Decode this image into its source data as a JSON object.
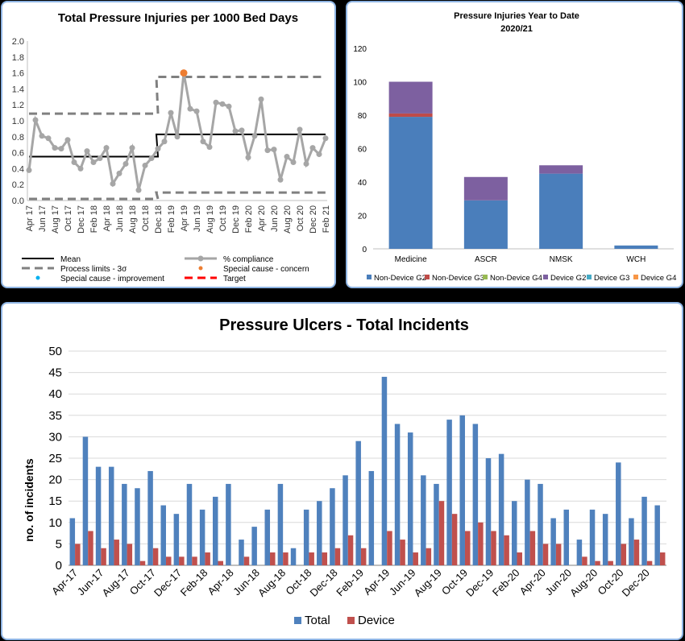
{
  "chart_data": [
    {
      "type": "line",
      "title": "Total Pressure Injuries per 1000 Bed Days",
      "ylim": [
        0,
        2.0
      ],
      "yticks": [
        "0.0",
        "0.2",
        "0.4",
        "0.6",
        "0.8",
        "1.0",
        "1.2",
        "1.4",
        "1.6",
        "1.8",
        "2.0"
      ],
      "x": [
        "Apr 17",
        "May 17",
        "Jun 17",
        "Jul 17",
        "Aug 17",
        "Sep 17",
        "Oct 17",
        "Nov 17",
        "Dec 17",
        "Jan 18",
        "Feb 18",
        "Mar 18",
        "Apr 18",
        "May 18",
        "Jun 18",
        "Jul 18",
        "Aug 18",
        "Sep 18",
        "Oct 18",
        "Nov 18",
        "Dec 18",
        "Jan 19",
        "Feb 19",
        "Mar 19",
        "Apr 19",
        "May 19",
        "Jun 19",
        "Jul 19",
        "Aug 19",
        "Sep 19",
        "Oct 19",
        "Nov 19",
        "Dec 19",
        "Jan 20",
        "Feb 20",
        "Mar 20",
        "Apr 20",
        "May 20",
        "Jun 20",
        "Jul 20",
        "Aug 20",
        "Sep 20",
        "Oct 20",
        "Nov 20",
        "Dec 20",
        "Jan 21",
        "Feb 21"
      ],
      "xtick_labels": [
        "Apr 17",
        "Jun 17",
        "Aug 17",
        "Oct 17",
        "Dec 17",
        "Feb 18",
        "Apr 18",
        "Jun 18",
        "Aug 18",
        "Oct 18",
        "Dec 18",
        "Feb 19",
        "Apr 19",
        "Jun 19",
        "Aug 19",
        "Oct 19",
        "Dec 19",
        "Feb 20",
        "Apr 20",
        "Jun 20",
        "Aug 20",
        "Oct 20",
        "Dec 20",
        "Feb 21"
      ],
      "series": [
        {
          "name": "% compliance",
          "color": "#a6a6a6",
          "values": [
            0.38,
            1.01,
            0.81,
            0.78,
            0.66,
            0.65,
            0.76,
            0.48,
            0.4,
            0.62,
            0.48,
            0.53,
            0.66,
            0.21,
            0.34,
            0.46,
            0.66,
            0.13,
            0.44,
            0.53,
            0.65,
            0.74,
            1.1,
            0.8,
            1.6,
            1.15,
            1.12,
            0.74,
            0.67,
            1.23,
            1.21,
            1.18,
            0.87,
            0.88,
            0.54,
            0.81,
            1.27,
            0.63,
            0.64,
            0.26,
            0.55,
            0.48,
            0.89,
            0.46,
            0.66,
            0.58,
            0.78
          ]
        },
        {
          "name": "Mean",
          "color": "#000000",
          "segments": [
            {
              "from": 0,
              "to": 20,
              "value": 0.55
            },
            {
              "from": 20,
              "to": 46,
              "value": 0.83
            }
          ]
        },
        {
          "name": "Process limits - 3σ",
          "color": "#808080",
          "upper": [
            {
              "from": 0,
              "to": 20,
              "value": 1.09
            },
            {
              "from": 20,
              "to": 46,
              "value": 1.55
            }
          ],
          "lower": [
            {
              "from": 0,
              "to": 20,
              "value": 0.02
            },
            {
              "from": 20,
              "to": 46,
              "value": 0.1
            }
          ]
        }
      ],
      "special_cause_concern": {
        "index": 24,
        "value": 1.6,
        "color": "#ed7d31"
      },
      "legend": [
        {
          "label": "Mean",
          "style": "line",
          "color": "#000000"
        },
        {
          "label": "% compliance",
          "style": "line-marker",
          "color": "#a6a6a6"
        },
        {
          "label": "Process limits - 3σ",
          "style": "dash",
          "color": "#808080"
        },
        {
          "label": "Special cause - concern",
          "style": "dot",
          "color": "#ed7d31"
        },
        {
          "label": "Special cause  - improvement",
          "style": "dot",
          "color": "#00b0f0"
        },
        {
          "label": "Target",
          "style": "dash",
          "color": "#ff0000"
        }
      ]
    },
    {
      "type": "bar",
      "stacked": true,
      "title": "Pressure Injuries Year to Date",
      "subtitle": "2020/21",
      "ylim": [
        0,
        120
      ],
      "yticks": [
        "0",
        "20",
        "40",
        "60",
        "80",
        "100",
        "120"
      ],
      "categories": [
        "Medicine",
        "ASCR",
        "NMSK",
        "WCH"
      ],
      "series": [
        {
          "name": "Non-Device G2",
          "color": "#4a7ebb",
          "values": [
            79,
            29,
            45,
            2
          ]
        },
        {
          "name": "Non-Device G3",
          "color": "#be4b48",
          "values": [
            2,
            0,
            0,
            0
          ]
        },
        {
          "name": "Non-Device G4",
          "color": "#98b954",
          "values": [
            0,
            0,
            0,
            0
          ]
        },
        {
          "name": "Device G2",
          "color": "#7d60a0",
          "values": [
            19,
            14,
            5,
            0
          ]
        },
        {
          "name": "Device G3",
          "color": "#46aac5",
          "values": [
            0,
            0,
            0,
            0
          ]
        },
        {
          "name": "Device G4",
          "color": "#f79646",
          "values": [
            0,
            0,
            0,
            0
          ]
        }
      ]
    },
    {
      "type": "bar",
      "title": "Pressure Ulcers - Total Incidents",
      "ylabel": "no. of incidents",
      "ylim": [
        0,
        50
      ],
      "yticks": [
        "0",
        "5",
        "10",
        "15",
        "20",
        "25",
        "30",
        "35",
        "40",
        "45",
        "50"
      ],
      "categories": [
        "Apr-17",
        "May-17",
        "Jun-17",
        "Jul-17",
        "Aug-17",
        "Sep-17",
        "Oct-17",
        "Nov-17",
        "Dec-17",
        "Jan-18",
        "Feb-18",
        "Mar-18",
        "Apr-18",
        "May-18",
        "Jun-18",
        "Jul-18",
        "Aug-18",
        "Sep-18",
        "Oct-18",
        "Nov-18",
        "Dec-18",
        "Jan-19",
        "Feb-19",
        "Mar-19",
        "Apr-19",
        "May-19",
        "Jun-19",
        "Jul-19",
        "Aug-19",
        "Sep-19",
        "Oct-19",
        "Nov-19",
        "Dec-19",
        "Jan-20",
        "Feb-20",
        "Mar-20",
        "Apr-20",
        "May-20",
        "Jun-20",
        "Jul-20",
        "Aug-20",
        "Sep-20",
        "Oct-20",
        "Nov-20",
        "Dec-20",
        "Jan-21"
      ],
      "xtick_labels": [
        "Apr-17",
        "Jun-17",
        "Aug-17",
        "Oct-17",
        "Dec-17",
        "Feb-18",
        "Apr-18",
        "Jun-18",
        "Aug-18",
        "Oct-18",
        "Dec-18",
        "Feb-19",
        "Apr-19",
        "Jun-19",
        "Aug-19",
        "Oct-19",
        "Dec-19",
        "Feb-20",
        "Apr-20",
        "Jun-20",
        "Aug-20",
        "Oct-20",
        "Dec-20"
      ],
      "series": [
        {
          "name": "Total",
          "color": "#4f81bd",
          "values": [
            11,
            30,
            23,
            23,
            19,
            18,
            22,
            14,
            12,
            19,
            13,
            16,
            19,
            6,
            9,
            13,
            19,
            4,
            13,
            15,
            18,
            21,
            29,
            22,
            44,
            33,
            31,
            21,
            19,
            34,
            35,
            33,
            25,
            26,
            15,
            20,
            19,
            11,
            13,
            6,
            13,
            12,
            24,
            11,
            16,
            14
          ]
        },
        {
          "name": "Device",
          "color": "#c0504d",
          "values": [
            5,
            8,
            4,
            6,
            5,
            1,
            4,
            2,
            2,
            2,
            3,
            1,
            0,
            2,
            0,
            3,
            3,
            0,
            3,
            3,
            4,
            7,
            4,
            0,
            8,
            6,
            3,
            4,
            15,
            12,
            8,
            10,
            8,
            7,
            3,
            8,
            5,
            5,
            0,
            2,
            1,
            1,
            5,
            6,
            1,
            3
          ]
        }
      ],
      "legend": [
        "Total",
        "Device"
      ]
    }
  ]
}
